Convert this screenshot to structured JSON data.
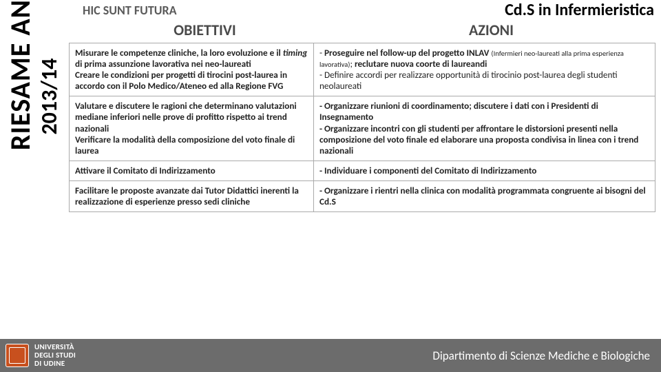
{
  "motto": "HIC SUNT FUTURA",
  "course_title": "Cd.S in Infermieristica",
  "headers": {
    "objectives": "OBIETTIVI",
    "actions": "AZIONI"
  },
  "sidebar": {
    "main": "RIESAME ANNUALE",
    "year": "2013/14"
  },
  "rows": [
    {
      "objective": "Misurare le competenze cliniche, la loro evoluzione e il <i class=\"legacy\">timing</i> di prima assunzione lavorativa nei neo-laureati<br>Creare le condizioni per progetti di tirocini post-laurea in accordo con il Polo Medico/Ateneo ed alla Regione FVG",
      "action": "- <span class=\"bold\">Proseguire nel follow-up del progetto INLAV</span> <span class=\"small\">(Infermieri neo-laureati alla prima esperienza lavorativa)</span>; <span class=\"bold\">reclutare nuova coorte di laureandi</span><br>- Definire accordi per realizzare opportunità di tirocinio post-laurea degli studenti neolaureati"
    },
    {
      "objective": "Valutare e discutere le ragioni che determinano valutazioni mediane inferiori nelle prove di profitto rispetto ai trend nazionali<br>Verificare la modalità della composizione del voto finale di laurea",
      "action": "<span class=\"bold\">- Organizzare riunioni di coordinamento; discutere i dati con i Presidenti di Insegnamento<br>- Organizzare incontri con gli studenti per affrontare le distorsioni presenti nella composizione del voto finale ed elaborare una proposta condivisa in linea con i trend nazionali</span>"
    },
    {
      "objective": "Attivare il Comitato di Indirizzamento",
      "action": "<span class=\"bold\">- Individuare i componenti del Comitato di Indirizzamento</span>"
    },
    {
      "objective": "Facilitare le proposte avanzate dai Tutor Didattici inerenti la realizzazione di esperienze presso sedi cliniche",
      "action": "<span class=\"bold\">- Organizzare i rientri nella clinica con modalità programmata congruente ai bisogni del Cd.S</span>"
    }
  ],
  "footer": {
    "uni_line1": "UNIVERSITÀ",
    "uni_line2": "DEGLI STUDI",
    "uni_line3": "DI UDINE",
    "department": "Dipartimento di Scienze Mediche e Biologiche"
  },
  "colors": {
    "footer_bg": "#6c6c6c",
    "crest": "#c8501e",
    "text_header": "#4a4a4a",
    "border": "#aaaaaa"
  }
}
